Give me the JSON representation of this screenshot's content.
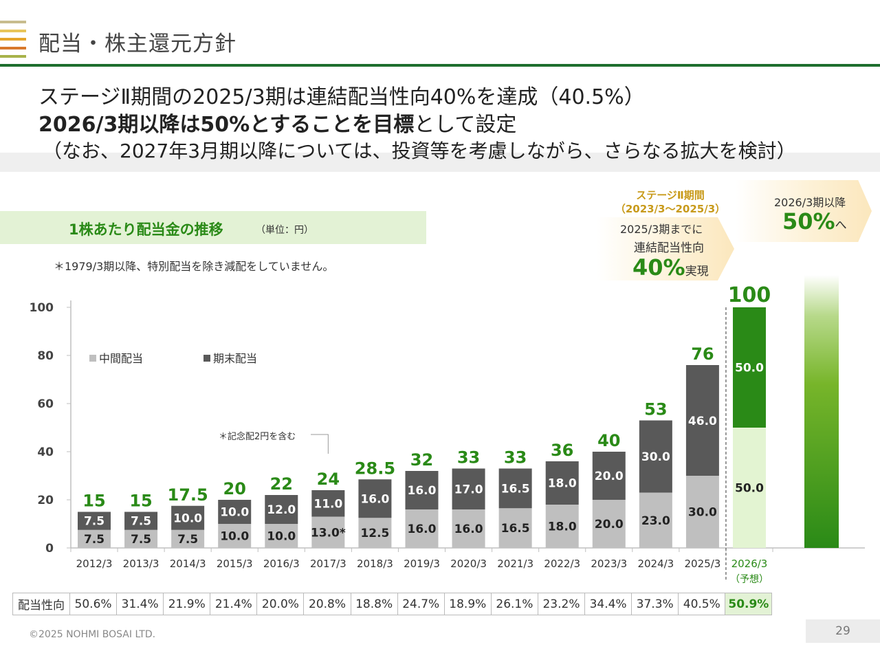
{
  "header": {
    "title": "配当・株主還元方針",
    "stripe_colors": [
      "#c8bd8e",
      "#e8c55a",
      "#e6a62c",
      "#d8782c",
      "#a8b24a"
    ],
    "rule_color": "#1e6e2e"
  },
  "headline": {
    "line1": "ステージⅡ期間の2025/3期は連結配当性向40%を達成（40.5%）",
    "line2_bold": "2026/3期以降は50%とすることを目標",
    "line2_rest": "として設定",
    "line3": "（なお、2027年3月期以降については、投資等を考慮しながら、さらなる拡大を検討）"
  },
  "section": {
    "title": "1株あたり配当金の推移",
    "unit": "（単位：円）",
    "note": "＊1979/3期以降、特別配当を除き減配をしていません。"
  },
  "callouts": {
    "stage_title": "ステージⅡ期間",
    "stage_period": "（2023/3〜2025/3）",
    "stage_line1": "2025/3期までに",
    "stage_line2": "連結配当性向",
    "stage_value": "40%",
    "stage_suffix": "実現",
    "future_line1": "2026/3期以降",
    "future_value": "50%",
    "future_suffix": "へ"
  },
  "chart_data": {
    "type": "bar",
    "stacked": true,
    "title": "1株あたり配当金の推移",
    "unit": "円",
    "categories": [
      "2012/3",
      "2013/3",
      "2014/3",
      "2015/3",
      "2016/3",
      "2017/3",
      "2018/3",
      "2019/3",
      "2020/3",
      "2021/3",
      "2022/3",
      "2023/3",
      "2024/3",
      "2025/3",
      "2026/3"
    ],
    "forecast_category": {
      "label": "2026/3",
      "sublabel": "（予想）"
    },
    "series": [
      {
        "name": "中間配当",
        "color": "#bfbfbf",
        "values": [
          7.5,
          7.5,
          7.5,
          10.0,
          10.0,
          13.0,
          12.5,
          16.0,
          16.0,
          16.5,
          18.0,
          20.0,
          23.0,
          30.0,
          50.0
        ],
        "labels": [
          "7.5",
          "7.5",
          "7.5",
          "10.0",
          "10.0",
          "13.0*",
          "12.5",
          "16.0",
          "16.0",
          "16.5",
          "18.0",
          "20.0",
          "23.0",
          "30.0",
          "50.0"
        ]
      },
      {
        "name": "期末配当",
        "color": "#595959",
        "values": [
          7.5,
          7.5,
          10.0,
          10.0,
          12.0,
          11.0,
          16.0,
          16.0,
          17.0,
          16.5,
          18.0,
          20.0,
          30.0,
          46.0,
          50.0
        ],
        "labels": [
          "7.5",
          "7.5",
          "10.0",
          "10.0",
          "12.0",
          "11.0",
          "16.0",
          "16.0",
          "17.0",
          "16.5",
          "18.0",
          "20.0",
          "30.0",
          "46.0",
          "50.0"
        ]
      }
    ],
    "totals": [
      "15",
      "15",
      "17.5",
      "20",
      "22",
      "24",
      "28.5",
      "32",
      "33",
      "33",
      "36",
      "40",
      "53",
      "76",
      "100"
    ],
    "forecast_colors": {
      "interim": "#e3f4d2",
      "final": "#2a8a17"
    },
    "total_label_color": "#2a8a17",
    "yticks": [
      0,
      20,
      40,
      60,
      80,
      100
    ],
    "ylim": [
      0,
      100
    ],
    "xlabel": "",
    "ylabel": "",
    "grid": false,
    "legend": "top-left",
    "annotation": "＊記念配2円を含む",
    "annotation_target": "2017/3"
  },
  "payout_table": {
    "header": "配当性向",
    "values": [
      "50.6%",
      "31.4%",
      "21.9%",
      "21.4%",
      "20.0%",
      "20.8%",
      "18.8%",
      "24.7%",
      "18.9%",
      "26.1%",
      "23.2%",
      "34.4%",
      "37.3%",
      "40.5%",
      "50.9%"
    ]
  },
  "footer": {
    "copyright": "©2025 NOHMI BOSAI LTD.",
    "page": "29"
  }
}
